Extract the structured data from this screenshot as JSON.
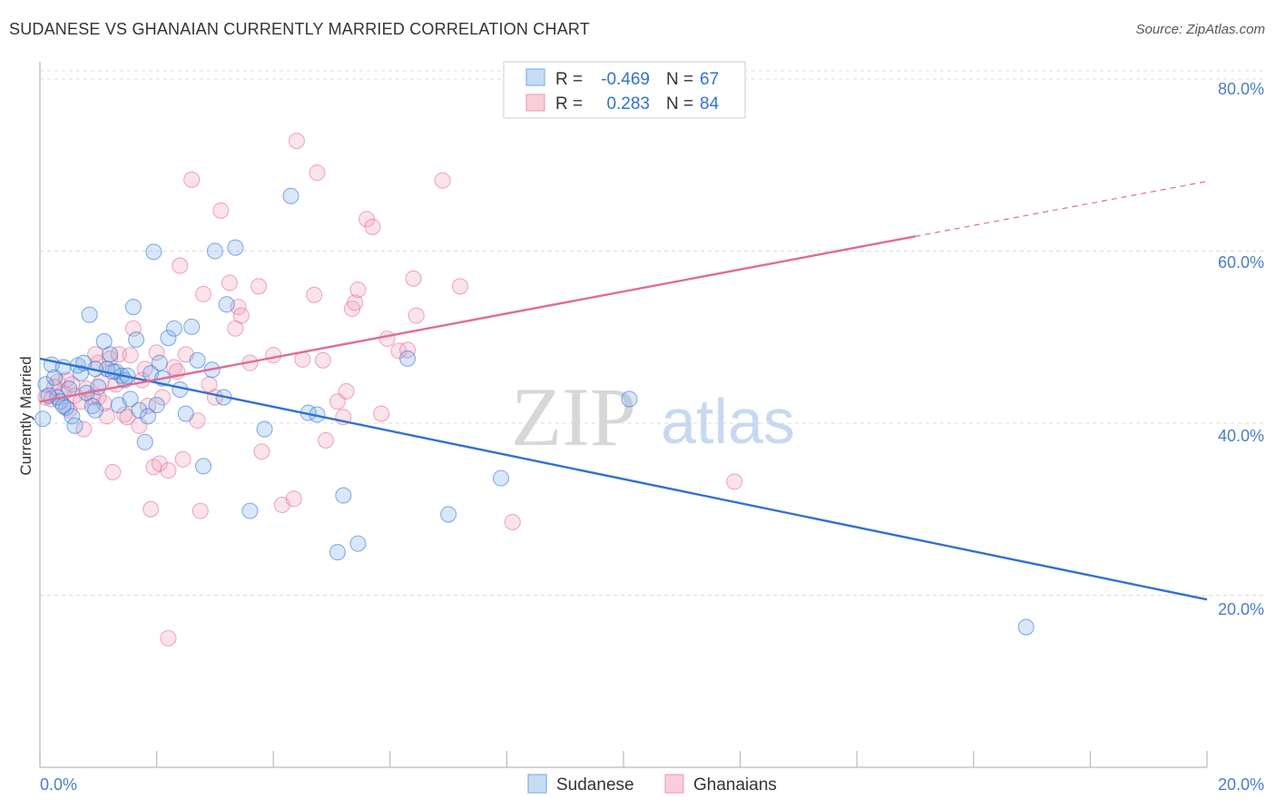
{
  "title": "SUDANESE VS GHANAIAN CURRENTLY MARRIED CORRELATION CHART",
  "source": "Source: ZipAtlas.com",
  "watermark": {
    "zip": "ZIP",
    "atlas": "atlas"
  },
  "colors": {
    "blue": "#7fb0ea",
    "blue_line": "#2f72d0",
    "pink": "#f2a2bb",
    "pink_line": "#e06c93",
    "tick": "#4a7cc9"
  },
  "legend": {
    "rows": [
      {
        "r_label": "R = ",
        "r_value": "-0.469",
        "n_label": "N = ",
        "n_value": "67"
      },
      {
        "r_label": "R = ",
        "r_value": "0.283",
        "n_label": "N = ",
        "n_value": "84"
      }
    ]
  },
  "chart_data": {
    "type": "scatter",
    "title": "SUDANESE VS GHANAIAN CURRENTLY MARRIED CORRELATION CHART",
    "xlabel": "",
    "ylabel": "Currently Married",
    "xlim": [
      0,
      20
    ],
    "ylim": [
      0,
      82
    ],
    "x_tick_labels": [
      "0.0%",
      "20.0%"
    ],
    "y_tick_labels": [
      "20.0%",
      "40.0%",
      "60.0%",
      "80.0%"
    ],
    "y_ticks": [
      20,
      40,
      60,
      80
    ],
    "grid": true,
    "legend_position": "bottom",
    "series": [
      {
        "name": "Sudanese",
        "color": "#7fb0ea",
        "trend": {
          "x0": 0.0,
          "y0": 47.5,
          "x1": 20.0,
          "y1": 19.5,
          "dashed_to": 20.0
        },
        "points": [
          [
            0.1,
            44.5
          ],
          [
            0.2,
            46.8
          ],
          [
            0.25,
            45.3
          ],
          [
            0.3,
            43.0
          ],
          [
            0.35,
            42.5
          ],
          [
            0.4,
            46.5
          ],
          [
            0.45,
            41.8
          ],
          [
            0.5,
            44.0
          ],
          [
            0.55,
            40.8
          ],
          [
            0.6,
            39.7
          ],
          [
            0.65,
            46.7
          ],
          [
            0.7,
            45.8
          ],
          [
            0.75,
            47.0
          ],
          [
            0.8,
            43.5
          ],
          [
            0.85,
            52.6
          ],
          [
            0.9,
            42.0
          ],
          [
            0.95,
            41.5
          ],
          [
            1.0,
            44.2
          ],
          [
            1.1,
            49.5
          ],
          [
            1.15,
            46.3
          ],
          [
            1.2,
            48.0
          ],
          [
            1.3,
            46.0
          ],
          [
            1.35,
            42.1
          ],
          [
            1.4,
            45.5
          ],
          [
            1.45,
            45.0
          ],
          [
            1.55,
            42.8
          ],
          [
            1.6,
            53.5
          ],
          [
            1.65,
            49.7
          ],
          [
            1.7,
            41.5
          ],
          [
            1.8,
            37.8
          ],
          [
            1.85,
            40.8
          ],
          [
            1.9,
            45.8
          ],
          [
            1.95,
            59.9
          ],
          [
            2.0,
            42.1
          ],
          [
            2.05,
            47.0
          ],
          [
            2.1,
            45.2
          ],
          [
            2.2,
            49.9
          ],
          [
            2.3,
            51.0
          ],
          [
            2.4,
            43.9
          ],
          [
            2.5,
            41.1
          ],
          [
            2.6,
            51.2
          ],
          [
            2.7,
            47.3
          ],
          [
            2.8,
            35.0
          ],
          [
            2.95,
            46.2
          ],
          [
            3.0,
            60.0
          ],
          [
            3.15,
            43.0
          ],
          [
            3.2,
            53.8
          ],
          [
            3.35,
            60.4
          ],
          [
            3.6,
            29.8
          ],
          [
            3.85,
            39.3
          ],
          [
            4.3,
            66.4
          ],
          [
            4.6,
            41.2
          ],
          [
            4.75,
            41.0
          ],
          [
            5.1,
            25.0
          ],
          [
            5.2,
            31.6
          ],
          [
            5.45,
            26.0
          ],
          [
            6.3,
            47.5
          ],
          [
            7.0,
            29.4
          ],
          [
            7.9,
            33.6
          ],
          [
            10.1,
            42.8
          ],
          [
            16.9,
            16.3
          ],
          [
            0.05,
            40.5
          ],
          [
            0.15,
            43.2
          ],
          [
            0.4,
            42.0
          ],
          [
            0.95,
            46.3
          ],
          [
            1.25,
            46.0
          ],
          [
            1.5,
            45.5
          ]
        ]
      },
      {
        "name": "Ghanaians",
        "color": "#f2a2bb",
        "trend": {
          "x0": 0.0,
          "y0": 42.5,
          "x1": 15.0,
          "y1": 61.7,
          "dashed_to": 20.0
        },
        "points": [
          [
            0.1,
            43.0
          ],
          [
            0.2,
            42.8
          ],
          [
            0.3,
            44.8
          ],
          [
            0.4,
            43.5
          ],
          [
            0.45,
            45.0
          ],
          [
            0.5,
            41.5
          ],
          [
            0.55,
            44.5
          ],
          [
            0.6,
            43.2
          ],
          [
            0.7,
            42.5
          ],
          [
            0.75,
            39.3
          ],
          [
            0.8,
            44.0
          ],
          [
            0.9,
            43.0
          ],
          [
            0.95,
            48.0
          ],
          [
            1.0,
            47.0
          ],
          [
            1.05,
            44.8
          ],
          [
            1.1,
            42.3
          ],
          [
            1.15,
            40.8
          ],
          [
            1.2,
            47.5
          ],
          [
            1.25,
            34.3
          ],
          [
            1.3,
            44.5
          ],
          [
            1.35,
            48.0
          ],
          [
            1.45,
            41.0
          ],
          [
            1.5,
            40.7
          ],
          [
            1.55,
            47.9
          ],
          [
            1.6,
            51.0
          ],
          [
            1.7,
            39.7
          ],
          [
            1.75,
            45.0
          ],
          [
            1.8,
            46.3
          ],
          [
            1.85,
            42.0
          ],
          [
            1.9,
            30.0
          ],
          [
            1.95,
            34.9
          ],
          [
            2.0,
            48.2
          ],
          [
            2.05,
            35.3
          ],
          [
            2.1,
            43.0
          ],
          [
            2.2,
            34.5
          ],
          [
            2.3,
            46.5
          ],
          [
            2.35,
            46.0
          ],
          [
            2.4,
            58.3
          ],
          [
            2.45,
            35.8
          ],
          [
            2.5,
            48.0
          ],
          [
            2.6,
            68.3
          ],
          [
            2.7,
            40.3
          ],
          [
            2.75,
            29.8
          ],
          [
            2.8,
            55.0
          ],
          [
            2.9,
            44.5
          ],
          [
            3.0,
            43.0
          ],
          [
            3.1,
            64.7
          ],
          [
            3.25,
            56.3
          ],
          [
            3.35,
            51.0
          ],
          [
            3.4,
            53.5
          ],
          [
            3.45,
            52.5
          ],
          [
            3.6,
            47.0
          ],
          [
            3.75,
            55.9
          ],
          [
            3.8,
            36.7
          ],
          [
            4.0,
            47.9
          ],
          [
            4.15,
            30.5
          ],
          [
            4.35,
            31.2
          ],
          [
            4.5,
            47.4
          ],
          [
            4.7,
            54.9
          ],
          [
            4.75,
            69.1
          ],
          [
            4.85,
            47.3
          ],
          [
            4.9,
            38.0
          ],
          [
            5.1,
            42.5
          ],
          [
            5.2,
            40.7
          ],
          [
            5.25,
            43.7
          ],
          [
            5.35,
            53.3
          ],
          [
            5.4,
            54.0
          ],
          [
            5.45,
            55.5
          ],
          [
            5.6,
            63.7
          ],
          [
            5.7,
            62.8
          ],
          [
            5.85,
            41.1
          ],
          [
            5.95,
            49.8
          ],
          [
            6.15,
            48.4
          ],
          [
            6.3,
            48.5
          ],
          [
            6.4,
            56.8
          ],
          [
            6.45,
            52.5
          ],
          [
            6.9,
            68.2
          ],
          [
            7.2,
            55.9
          ],
          [
            8.1,
            28.5
          ],
          [
            11.9,
            33.2
          ],
          [
            2.2,
            15.0
          ],
          [
            4.4,
            72.8
          ],
          [
            0.25,
            44.2
          ],
          [
            1.0,
            43.0
          ]
        ]
      }
    ]
  }
}
